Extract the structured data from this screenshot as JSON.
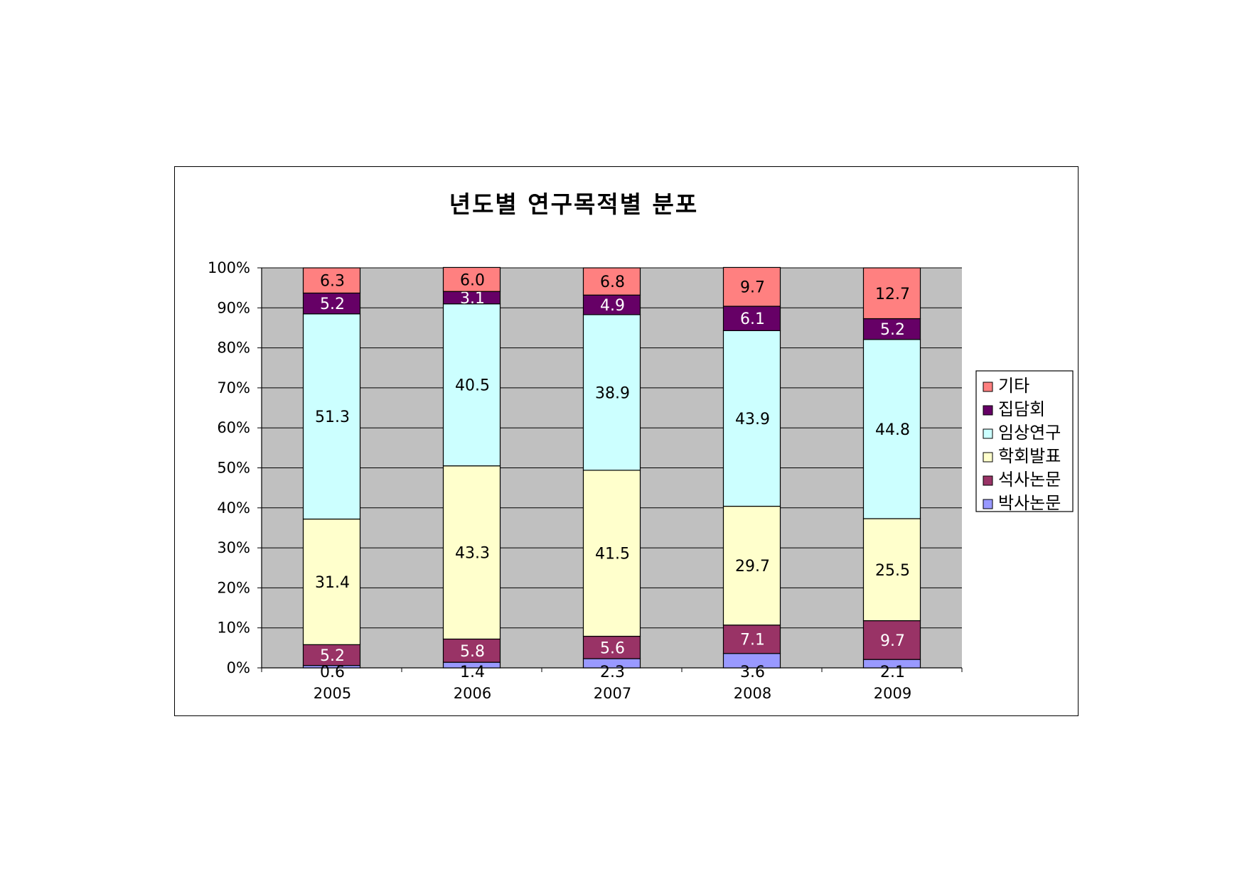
{
  "chart_data": {
    "type": "bar",
    "stacked": true,
    "title": "년도별 연구목적별 분포",
    "categories": [
      "2005",
      "2006",
      "2007",
      "2008",
      "2009"
    ],
    "ylim": [
      0,
      100
    ],
    "yticks": [
      "0%",
      "10%",
      "20%",
      "30%",
      "40%",
      "50%",
      "60%",
      "70%",
      "80%",
      "90%",
      "100%"
    ],
    "grid": true,
    "legend_position": "right",
    "plot_background": "#c0c0c0",
    "series": [
      {
        "name": "박사논문",
        "color": "#9999ff",
        "label_color": "#000000",
        "values": [
          0.6,
          1.4,
          2.3,
          3.6,
          2.1
        ]
      },
      {
        "name": "석사논문",
        "color": "#993366",
        "label_color": "#ffffff",
        "values": [
          5.2,
          5.8,
          5.6,
          7.1,
          9.7
        ]
      },
      {
        "name": "학회발표",
        "color": "#ffffcc",
        "label_color": "#000000",
        "values": [
          31.4,
          43.3,
          41.5,
          29.7,
          25.5
        ]
      },
      {
        "name": "임상연구",
        "color": "#ccffff",
        "label_color": "#000000",
        "values": [
          51.3,
          40.5,
          38.9,
          43.9,
          44.8
        ]
      },
      {
        "name": "집담회",
        "color": "#660066",
        "label_color": "#ffffff",
        "values": [
          5.2,
          3.1,
          4.9,
          6.1,
          5.2
        ]
      },
      {
        "name": "기타",
        "color": "#ff8080",
        "label_color": "#000000",
        "values": [
          6.3,
          6.0,
          6.8,
          9.7,
          12.7
        ]
      }
    ]
  }
}
